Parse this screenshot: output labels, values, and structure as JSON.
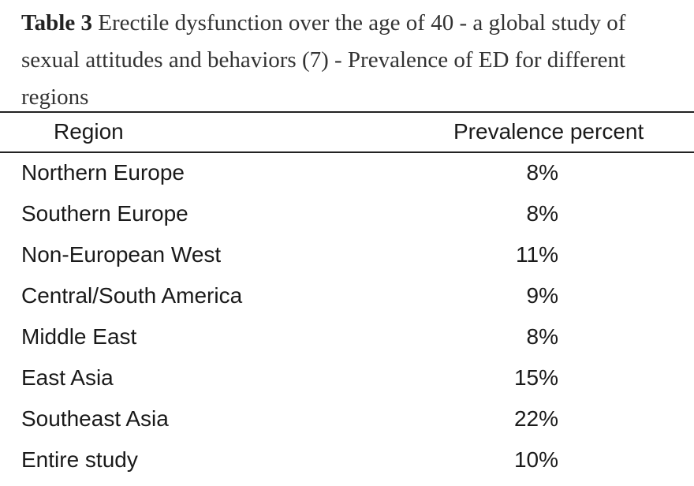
{
  "caption": {
    "label": "Table 3",
    "text": "Erectile dysfunction over the age of 40 - a global study of sexual attitudes and behaviors (7) - Prevalence of ED for different regions"
  },
  "table": {
    "columns": [
      "Region",
      "Prevalence percent"
    ],
    "rows": [
      [
        "Northern Europe",
        "8%"
      ],
      [
        "Southern Europe",
        "8%"
      ],
      [
        "Non-European West",
        "11%"
      ],
      [
        "Central/South America",
        "9%"
      ],
      [
        "Middle East",
        "8%"
      ],
      [
        "East Asia",
        "15%"
      ],
      [
        "Southeast Asia",
        "22%"
      ],
      [
        "Entire study",
        "10%"
      ]
    ]
  }
}
